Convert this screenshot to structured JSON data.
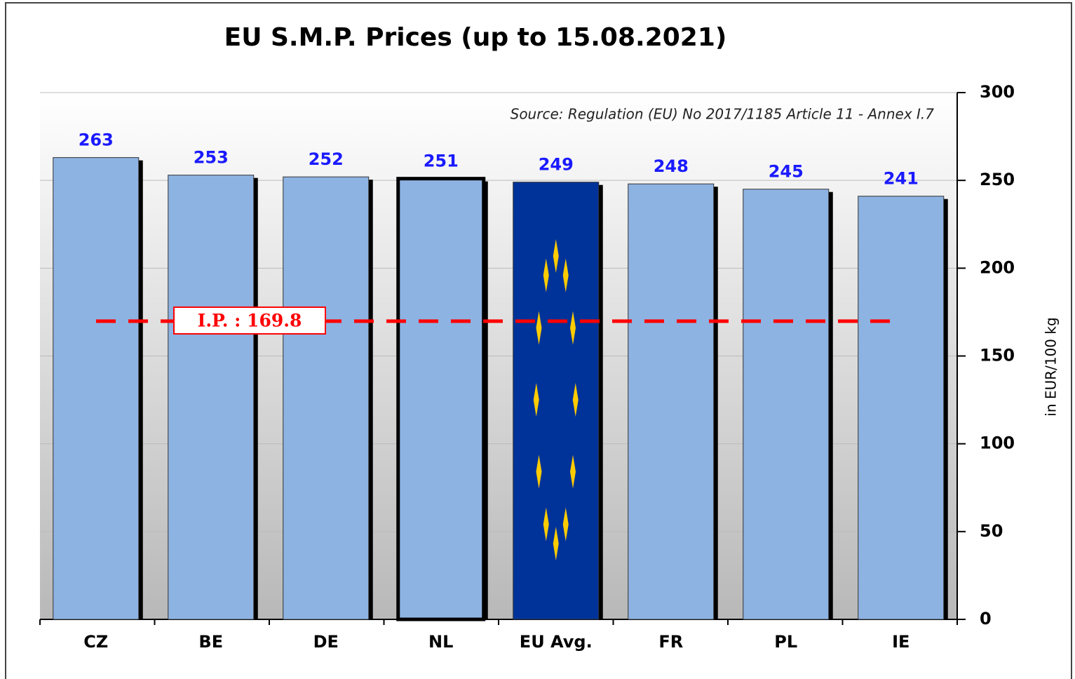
{
  "chart_data": {
    "type": "bar",
    "title": "EU  S.M.P. Prices  (up to 15.08.2021)",
    "source": "Source: Regulation (EU) No 2017/1185 Article 11 - Annex I.7",
    "y_axis_label": "in EUR/100 kg",
    "categories": [
      "CZ",
      "BE",
      "DE",
      "NL",
      "EU Avg.",
      "FR",
      "PL",
      "IE"
    ],
    "values": [
      263,
      253,
      252,
      251,
      249,
      248,
      245,
      241
    ],
    "colors": [
      "#8db3e2",
      "#8db3e2",
      "#8db3e2",
      "#8db3e2",
      "#003399",
      "#8db3e2",
      "#8db3e2",
      "#8db3e2"
    ],
    "outlined_category": "NL",
    "value_label_color": "#1a1aff",
    "reference_line": {
      "value": 169.8,
      "label": "I.P. : 169.8",
      "color": "#ff0000"
    },
    "ylim": [
      0,
      300
    ],
    "yticks": [
      0,
      50,
      100,
      150,
      200,
      250,
      300
    ],
    "grid": true,
    "y_axis_side": "right"
  }
}
